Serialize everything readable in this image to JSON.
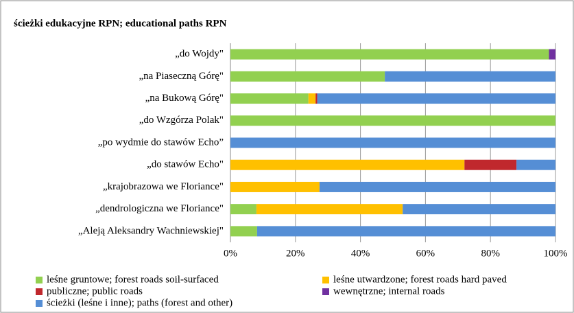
{
  "chart_data": {
    "type": "stacked_barh",
    "title": "ścieżki edukacyjne RPN; educational paths RPN",
    "categories": [
      "„do Wojdy\"",
      "„na Piaseczną Górę\"",
      "„na Bukową Górę\"",
      "„do Wzgórza Polak\"",
      "„po wydmie do stawów Echo”",
      "„do stawów Echo\"",
      "„krajobrazowa we Floriance\"",
      "„dendrologiczna we Floriance\"",
      "„Aleją Aleksandry Wachniewskiej\""
    ],
    "series": [
      {
        "name": "leśne gruntowe; forest roads soil-surfaced",
        "color": "#92d050",
        "values": [
          98,
          47.5,
          24,
          100,
          0,
          0,
          0,
          8,
          8.2
        ]
      },
      {
        "name": "leśne utwardzone; forest roads hard paved",
        "color": "#ffc000",
        "values": [
          0,
          0,
          2.2,
          0,
          0,
          72,
          27.4,
          45,
          0
        ]
      },
      {
        "name": "publiczne; public roads",
        "color": "#c0282d",
        "values": [
          0,
          0,
          0.5,
          0,
          0,
          16,
          0,
          0,
          0
        ]
      },
      {
        "name": "wewnętrzne; internal roads",
        "color": "#7030a0",
        "values": [
          2,
          0,
          0,
          0,
          0,
          0,
          0,
          0,
          0
        ]
      },
      {
        "name": "ścieżki (leśne i inne); paths (forest and other)",
        "color": "#558ed5",
        "values": [
          0,
          52.5,
          73.3,
          0,
          100,
          12,
          72.6,
          47,
          91.8
        ]
      }
    ],
    "xlim": [
      0,
      100
    ],
    "xticks": [
      {
        "value": 0,
        "label": "0%"
      },
      {
        "value": 20,
        "label": "20%"
      },
      {
        "value": 40,
        "label": "40%"
      },
      {
        "value": 60,
        "label": "60%"
      },
      {
        "value": 80,
        "label": "80%"
      },
      {
        "value": 100,
        "label": "100%"
      }
    ],
    "grid": true
  }
}
